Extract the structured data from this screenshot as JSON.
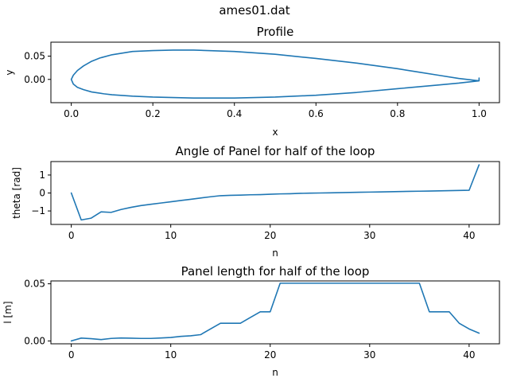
{
  "figure": {
    "suptitle": "ames01.dat"
  },
  "chart_data": [
    {
      "type": "line",
      "title": "Profile",
      "xlabel": "x",
      "ylabel": "y",
      "xlim": [
        -0.05,
        1.05
      ],
      "ylim": [
        -0.05,
        0.08
      ],
      "xticks": [
        0.0,
        0.2,
        0.4,
        0.6,
        0.8,
        1.0
      ],
      "xtick_labels": [
        "0.0",
        "0.2",
        "0.4",
        "0.6",
        "0.8",
        "1.0"
      ],
      "yticks": [
        0.0,
        0.05
      ],
      "ytick_labels": [
        "0.00",
        "0.05"
      ],
      "series": [
        {
          "x": [
            1.0,
            1.0,
            0.95,
            0.9,
            0.85,
            0.8,
            0.7,
            0.6,
            0.5,
            0.4,
            0.3,
            0.25,
            0.2,
            0.15,
            0.1,
            0.07,
            0.05,
            0.03,
            0.015,
            0.005,
            0.0,
            0.005,
            0.015,
            0.03,
            0.05,
            0.08,
            0.1,
            0.15,
            0.2,
            0.3,
            0.4,
            0.5,
            0.6,
            0.7,
            0.8,
            0.9,
            0.95,
            1.0
          ],
          "y": [
            0.003,
            -0.003,
            0.002,
            0.009,
            0.016,
            0.023,
            0.035,
            0.045,
            0.054,
            0.06,
            0.063,
            0.063,
            0.062,
            0.06,
            0.053,
            0.046,
            0.039,
            0.029,
            0.019,
            0.009,
            0.0,
            -0.01,
            -0.017,
            -0.022,
            -0.027,
            -0.031,
            -0.033,
            -0.036,
            -0.038,
            -0.04,
            -0.04,
            -0.038,
            -0.034,
            -0.028,
            -0.02,
            -0.012,
            -0.008,
            -0.003
          ]
        }
      ]
    },
    {
      "type": "line",
      "title": "Angle of Panel for half of the loop",
      "xlabel": "n",
      "ylabel": "theta [rad]",
      "xlim": [
        -2.05,
        43.05
      ],
      "ylim": [
        -1.75,
        1.75
      ],
      "xticks": [
        0,
        10,
        20,
        30,
        40
      ],
      "xtick_labels": [
        "0",
        "10",
        "20",
        "30",
        "40"
      ],
      "yticks": [
        -1,
        0,
        1
      ],
      "ytick_labels": [
        "−1",
        "0",
        "1"
      ],
      "series": [
        {
          "x": [
            0,
            1,
            2,
            3,
            4,
            5,
            6,
            7,
            8,
            9,
            10,
            11,
            12,
            13,
            14,
            15,
            16,
            17,
            18,
            19,
            20,
            21,
            22,
            23,
            24,
            25,
            26,
            27,
            28,
            29,
            30,
            31,
            32,
            33,
            34,
            35,
            36,
            37,
            38,
            39,
            40,
            41
          ],
          "y": [
            0.0,
            -1.5,
            -1.4,
            -1.05,
            -1.08,
            -0.92,
            -0.8,
            -0.7,
            -0.63,
            -0.56,
            -0.49,
            -0.42,
            -0.35,
            -0.28,
            -0.21,
            -0.15,
            -0.13,
            -0.12,
            -0.1,
            -0.09,
            -0.07,
            -0.05,
            -0.04,
            -0.02,
            -0.01,
            0.0,
            0.01,
            0.02,
            0.03,
            0.04,
            0.05,
            0.06,
            0.07,
            0.08,
            0.09,
            0.1,
            0.11,
            0.12,
            0.13,
            0.14,
            0.15,
            1.57
          ]
        }
      ]
    },
    {
      "type": "line",
      "title": "Panel length for half of the loop",
      "xlabel": "n",
      "ylabel": "l [m]",
      "xlim": [
        -2.05,
        43.05
      ],
      "ylim": [
        -0.0025,
        0.0525
      ],
      "xticks": [
        0,
        10,
        20,
        30,
        40
      ],
      "xtick_labels": [
        "0",
        "10",
        "20",
        "30",
        "40"
      ],
      "yticks": [
        0.0,
        0.05
      ],
      "ytick_labels": [
        "0.00",
        "0.05"
      ],
      "series": [
        {
          "x": [
            0,
            1,
            2,
            3,
            4,
            5,
            6,
            7,
            8,
            9,
            10,
            11,
            12,
            13,
            14,
            15,
            16,
            17,
            18,
            19,
            20,
            21,
            22,
            23,
            24,
            25,
            26,
            27,
            28,
            29,
            30,
            31,
            32,
            33,
            34,
            35,
            36,
            37,
            38,
            39,
            40,
            41
          ],
          "y": [
            0.0,
            0.0025,
            0.002,
            0.0012,
            0.0022,
            0.0026,
            0.0024,
            0.0022,
            0.0022,
            0.0026,
            0.003,
            0.004,
            0.0045,
            0.0055,
            0.0105,
            0.0155,
            0.0155,
            0.0155,
            0.0205,
            0.0255,
            0.0255,
            0.0505,
            0.0505,
            0.0505,
            0.0505,
            0.0505,
            0.0505,
            0.0505,
            0.0505,
            0.0505,
            0.0505,
            0.0505,
            0.0505,
            0.0505,
            0.0505,
            0.0505,
            0.0255,
            0.0255,
            0.0255,
            0.0155,
            0.0105,
            0.0068
          ]
        }
      ]
    }
  ]
}
